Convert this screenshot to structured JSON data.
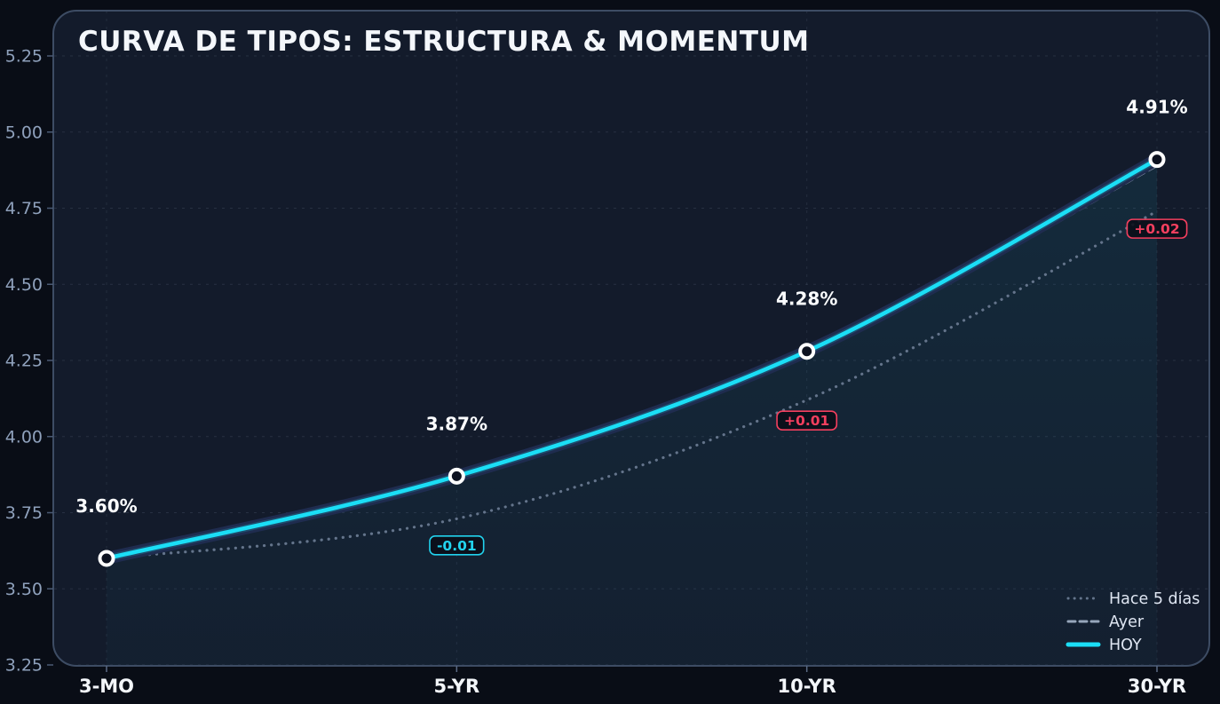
{
  "title": "CURVA DE TIPOS: ESTRUCTURA & MOMENTUM",
  "colors": {
    "hoy": "#1bdef6",
    "ayer": "#97a6bb",
    "hace_5_dias": "#64748b",
    "badge_up": "#f43f5e",
    "badge_down": "#22d3ee",
    "panel_background": "#131b2b",
    "page_background": "#090d16",
    "panel_border": "#3d4c64",
    "grid": "#94a3b8",
    "axis_text": "#8fa1bc",
    "category_text": "#f3f6fa",
    "marker_ring": "#ffffff",
    "marker_fill": "#0d1220",
    "line_glow": "#1f2c4f"
  },
  "chart_data": {
    "type": "line",
    "title": "CURVA DE TIPOS: ESTRUCTURA & MOMENTUM",
    "categories": [
      "3-MO",
      "5-YR",
      "10-YR",
      "30-YR"
    ],
    "series": [
      {
        "name": "Hace 5 días",
        "style": "dotted",
        "color": "#64748b",
        "values": [
          3.6,
          3.73,
          4.12,
          4.74
        ]
      },
      {
        "name": "Ayer",
        "style": "dashed",
        "color": "#97a6bb",
        "values": [
          3.6,
          3.88,
          4.27,
          4.89
        ]
      },
      {
        "name": "HOY",
        "style": "solid",
        "color": "#1bdef6",
        "markers": true,
        "area_fill": true,
        "values": [
          3.6,
          3.87,
          4.28,
          4.91
        ],
        "point_labels": [
          "3.60%",
          "3.87%",
          "4.28%",
          "4.91%"
        ]
      }
    ],
    "badges": [
      {
        "category": "5-YR",
        "text": "-0.01",
        "tone": "down"
      },
      {
        "category": "10-YR",
        "text": "+0.01",
        "tone": "up"
      },
      {
        "category": "30-YR",
        "text": "+0.02",
        "tone": "up"
      }
    ],
    "ylim": [
      3.25,
      5.25
    ],
    "y_ticks": [
      "3.25",
      "3.50",
      "3.75",
      "4.00",
      "4.25",
      "4.50",
      "4.75",
      "5.00",
      "5.25"
    ],
    "xlabel": "",
    "ylabel": "",
    "grid": true,
    "legend": {
      "position": "bottom-right",
      "entries": [
        "Hace 5 días",
        "Ayer",
        "HOY"
      ]
    }
  }
}
